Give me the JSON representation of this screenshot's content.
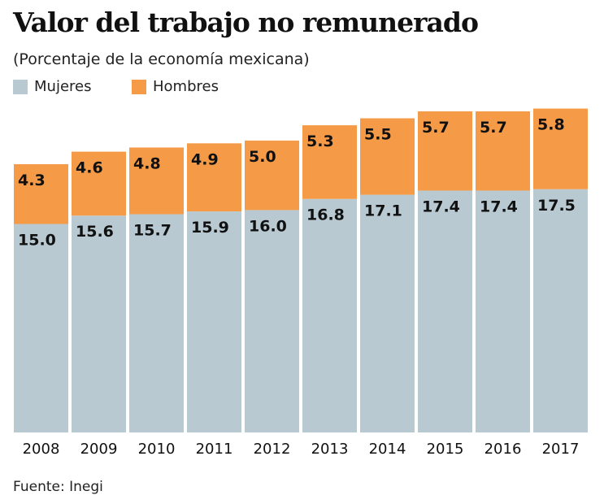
{
  "chart_data": {
    "type": "bar",
    "stacked": true,
    "title": "Valor del trabajo no remunerado",
    "subtitle": "(Porcentaje de la economía mexicana)",
    "categories": [
      "2008",
      "2009",
      "2010",
      "2011",
      "2012",
      "2013",
      "2014",
      "2015",
      "2016",
      "2017"
    ],
    "series": [
      {
        "name": "Mujeres",
        "color": "#b8c9d2",
        "values": [
          15.0,
          15.6,
          15.7,
          15.9,
          16.0,
          16.8,
          17.1,
          17.4,
          17.4,
          17.5
        ]
      },
      {
        "name": "Hombres",
        "color": "#f59b47",
        "values": [
          4.3,
          4.6,
          4.8,
          4.9,
          5.0,
          5.3,
          5.5,
          5.7,
          5.7,
          5.8
        ]
      }
    ],
    "legend": "top-left",
    "grid": false
  },
  "source": "Fuente: Inegi"
}
